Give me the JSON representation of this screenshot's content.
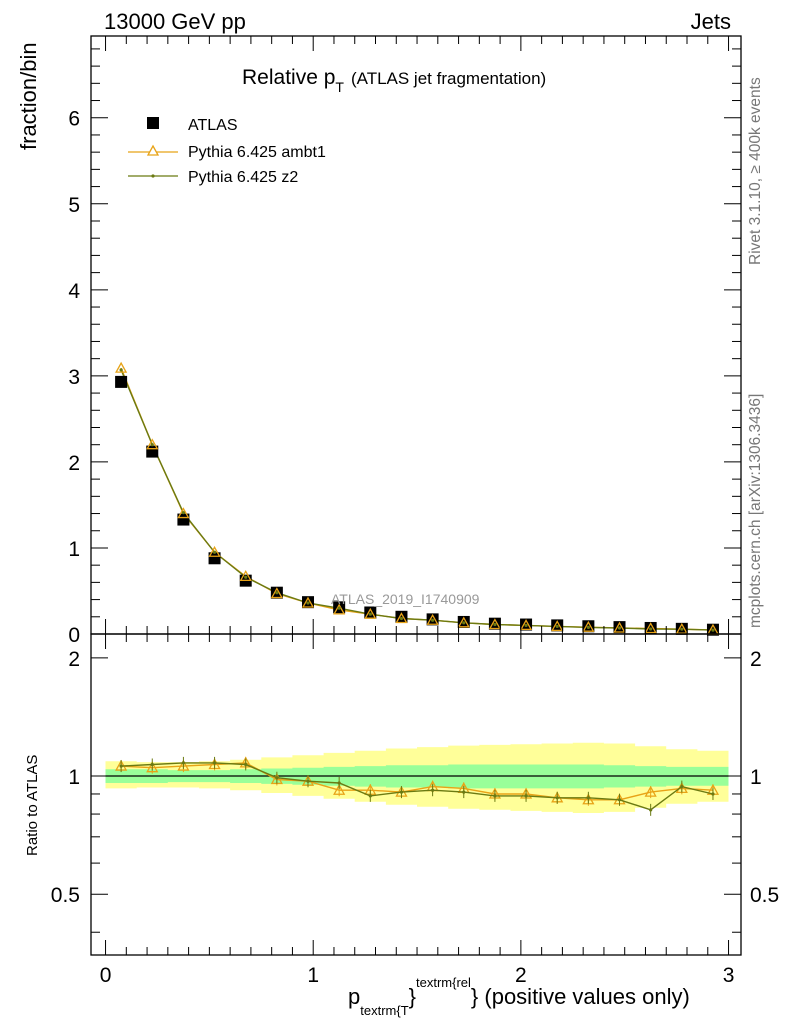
{
  "header": {
    "left": "13000 GeV pp",
    "right": "Jets"
  },
  "side_labels": {
    "rivet": "Rivet 3.1.10, ≥ 400k events",
    "mcplots": "mcplots.cern.ch [arXiv:1306.3436]"
  },
  "chart_data": {
    "type": "line",
    "title": {
      "main": "Relative p",
      "sub": "T",
      "extra": "(ATLAS jet fragmentation)"
    },
    "watermark": "ATLAS_2019_I1740909",
    "xlabel": {
      "p": "p",
      "sub": "textrm{T",
      "brace": "}",
      "sup": "textrm{rel",
      "rest": "} (positive values only)"
    },
    "ylabel": "fraction/bin",
    "ratio_ylabel": "Ratio to ATLAS",
    "xlim": [
      -0.07,
      3.06
    ],
    "ylim": [
      0,
      6.95
    ],
    "ratio_ylim": [
      0.35,
      2.3
    ],
    "xticks": [
      "0",
      "1",
      "2",
      "3"
    ],
    "yticks": [
      "0",
      "1",
      "2",
      "3",
      "4",
      "5",
      "6"
    ],
    "ratio_yticks": [
      "0.5",
      "1",
      "2"
    ],
    "x": [
      0.075,
      0.225,
      0.375,
      0.525,
      0.675,
      0.825,
      0.975,
      1.125,
      1.275,
      1.425,
      1.575,
      1.725,
      1.875,
      2.025,
      2.175,
      2.325,
      2.475,
      2.625,
      2.775,
      2.925
    ],
    "bin_edges": [
      0.0,
      0.15,
      0.3,
      0.45,
      0.6,
      0.75,
      0.9,
      1.05,
      1.2,
      1.35,
      1.5,
      1.65,
      1.8,
      1.95,
      2.1,
      2.25,
      2.4,
      2.55,
      2.7,
      2.85,
      3.0
    ],
    "legend": {
      "placement": "top-left"
    },
    "series": [
      {
        "name": "ATLAS",
        "color": "#000000",
        "marker": "square",
        "values": [
          2.93,
          2.12,
          1.33,
          0.88,
          0.62,
          0.48,
          0.37,
          0.31,
          0.25,
          0.2,
          0.17,
          0.14,
          0.12,
          0.11,
          0.1,
          0.09,
          0.08,
          0.07,
          0.06,
          0.05
        ]
      },
      {
        "name": "Pythia 6.425 ambt1",
        "color": "#e8a317",
        "marker": "triangle",
        "values": [
          3.09,
          2.2,
          1.4,
          0.95,
          0.67,
          0.47,
          0.36,
          0.28,
          0.23,
          0.18,
          0.16,
          0.13,
          0.11,
          0.1,
          0.088,
          0.079,
          0.07,
          0.064,
          0.056,
          0.046
        ],
        "ratio": [
          1.06,
          1.05,
          1.06,
          1.07,
          1.08,
          0.98,
          0.97,
          0.92,
          0.92,
          0.91,
          0.94,
          0.93,
          0.9,
          0.9,
          0.88,
          0.87,
          0.87,
          0.91,
          0.93,
          0.92
        ]
      },
      {
        "name": "Pythia 6.425 z2",
        "color": "#6b7a12",
        "marker": "dot",
        "values": [
          3.07,
          2.2,
          1.41,
          0.95,
          0.66,
          0.48,
          0.36,
          0.3,
          0.23,
          0.18,
          0.16,
          0.13,
          0.11,
          0.1,
          0.088,
          0.077,
          0.07,
          0.058,
          0.056,
          0.045
        ],
        "ratio": [
          1.06,
          1.07,
          1.08,
          1.08,
          1.07,
          0.99,
          0.97,
          0.96,
          0.89,
          0.91,
          0.92,
          0.91,
          0.89,
          0.89,
          0.88,
          0.88,
          0.87,
          0.82,
          0.94,
          0.9
        ]
      }
    ],
    "ratio_band": {
      "inner": {
        "color": "#99ff99",
        "lo": [
          0.96,
          0.96,
          0.965,
          0.965,
          0.96,
          0.955,
          0.95,
          0.945,
          0.94,
          0.935,
          0.935,
          0.93,
          0.93,
          0.93,
          0.93,
          0.93,
          0.935,
          0.94,
          0.945,
          0.945
        ],
        "hi": [
          1.04,
          1.04,
          1.035,
          1.035,
          1.04,
          1.045,
          1.05,
          1.055,
          1.06,
          1.065,
          1.065,
          1.07,
          1.07,
          1.07,
          1.07,
          1.07,
          1.065,
          1.06,
          1.055,
          1.055
        ]
      },
      "outer": {
        "color": "#ffff99",
        "lo": [
          0.93,
          0.935,
          0.935,
          0.93,
          0.92,
          0.905,
          0.89,
          0.875,
          0.86,
          0.845,
          0.835,
          0.825,
          0.82,
          0.815,
          0.81,
          0.805,
          0.81,
          0.83,
          0.85,
          0.86
        ],
        "hi": [
          1.09,
          1.085,
          1.085,
          1.09,
          1.1,
          1.115,
          1.13,
          1.145,
          1.16,
          1.175,
          1.185,
          1.195,
          1.2,
          1.205,
          1.21,
          1.215,
          1.21,
          1.19,
          1.17,
          1.16
        ]
      }
    }
  }
}
